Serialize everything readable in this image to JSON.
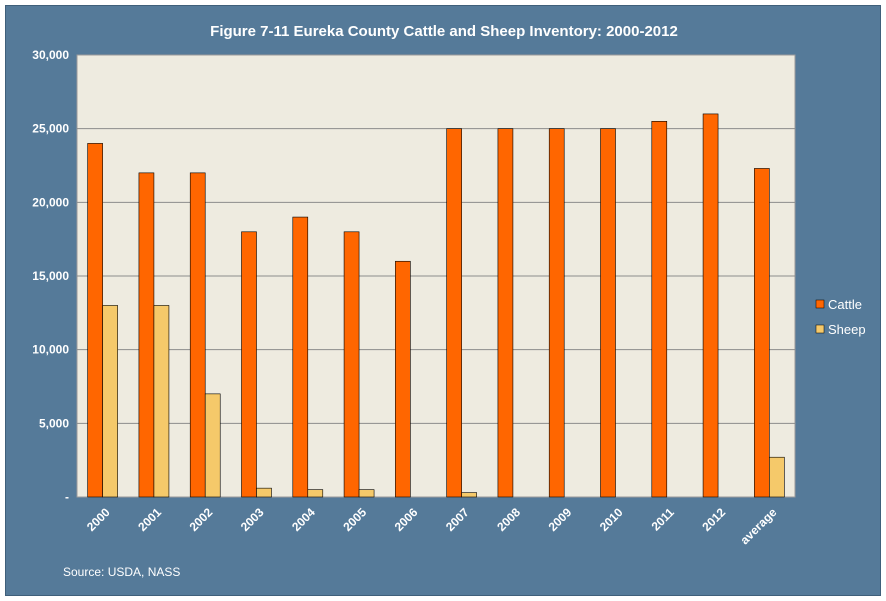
{
  "chart_data": {
    "type": "bar",
    "title": "Figure 7-11 Eureka County Cattle and Sheep Inventory: 2000-2012",
    "categories": [
      "2000",
      "2001",
      "2002",
      "2003",
      "2004",
      "2005",
      "2006",
      "2007",
      "2008",
      "2009",
      "2010",
      "2011",
      "2012",
      "average"
    ],
    "series": [
      {
        "name": "Cattle",
        "color": "#FF6600",
        "values": [
          24000,
          22000,
          22000,
          18000,
          19000,
          18000,
          16000,
          25000,
          25000,
          25000,
          25000,
          25500,
          26000,
          22300
        ]
      },
      {
        "name": "Sheep",
        "color": "#F5C96A",
        "values": [
          13000,
          13000,
          7000,
          600,
          500,
          500,
          0,
          300,
          0,
          0,
          0,
          0,
          0,
          2700
        ]
      }
    ],
    "ylim": [
      0,
      30000
    ],
    "yticks": [
      0,
      5000,
      10000,
      15000,
      20000,
      25000,
      30000
    ],
    "ytick_labels": [
      "-",
      "5,000",
      "10,000",
      "15,000",
      "20,000",
      "25,000",
      "30,000"
    ],
    "xlabel": "",
    "ylabel": "",
    "grid": true,
    "legend": "right",
    "plot_background": "#EEEBE0",
    "frame_background": "#557A99",
    "source": "Source: USDA, NASS"
  }
}
